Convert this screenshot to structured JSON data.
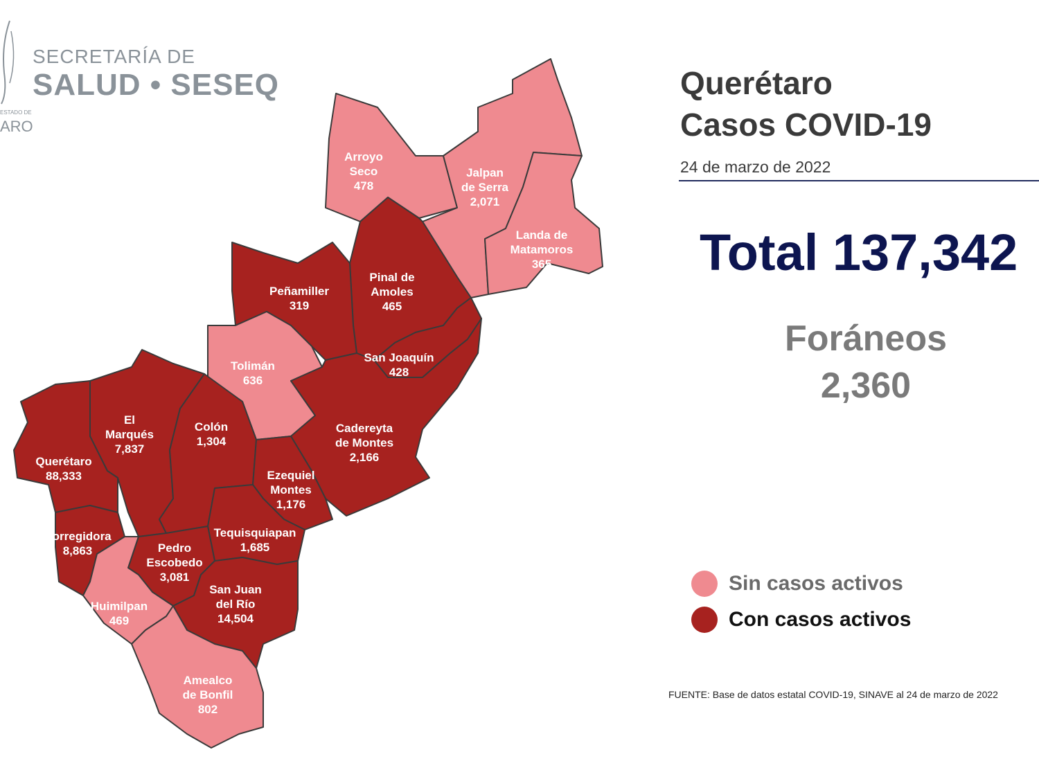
{
  "logo": {
    "line1": "SECRETARÍA DE",
    "line2": "SALUD • SESEQ",
    "small": "ESTADO DE",
    "aro": "ARO"
  },
  "header": {
    "title_line1": "Querétaro",
    "title_line2": "Casos COVID-19",
    "date": "24 de marzo de 2022"
  },
  "totals": {
    "total_label": "Total 137,342",
    "foraneos_label": "Foráneos",
    "foraneos_value": "2,360"
  },
  "legend": {
    "inactive_label": "Sin casos activos",
    "active_label": "Con casos activos",
    "inactive_color": "#ef8a90",
    "active_color": "#a7221f"
  },
  "source": "FUENTE: Base de datos estatal COVID-19, SINAVE al 24 de marzo de 2022",
  "municipalities": [
    {
      "id": "arroyo-seco",
      "name_lines": [
        "Arroyo",
        "Seco"
      ],
      "cases": "478",
      "active": false
    },
    {
      "id": "jalpan-de-serra",
      "name_lines": [
        "Jalpan",
        "de Serra"
      ],
      "cases": "2,071",
      "active": false
    },
    {
      "id": "landa-de-matamoros",
      "name_lines": [
        "Landa de",
        "Matamoros"
      ],
      "cases": "365",
      "active": false
    },
    {
      "id": "pinal-de-amoles",
      "name_lines": [
        "Pinal de",
        "Amoles"
      ],
      "cases": "465",
      "active": true
    },
    {
      "id": "penamiller",
      "name_lines": [
        "Peñamiller"
      ],
      "cases": "319",
      "active": true
    },
    {
      "id": "san-joaquin",
      "name_lines": [
        "San Joaquín"
      ],
      "cases": "428",
      "active": true
    },
    {
      "id": "toliman",
      "name_lines": [
        "Tolimán"
      ],
      "cases": "636",
      "active": false
    },
    {
      "id": "cadereyta-de-montes",
      "name_lines": [
        "Cadereyta",
        "de Montes"
      ],
      "cases": "2,166",
      "active": true
    },
    {
      "id": "el-marques",
      "name_lines": [
        "El",
        "Marqués"
      ],
      "cases": "7,837",
      "active": true
    },
    {
      "id": "colon",
      "name_lines": [
        "Colón"
      ],
      "cases": "1,304",
      "active": true
    },
    {
      "id": "queretaro",
      "name_lines": [
        "Querétaro"
      ],
      "cases": "88,333",
      "active": true
    },
    {
      "id": "ezequiel-montes",
      "name_lines": [
        "Ezequiel",
        "Montes"
      ],
      "cases": "1,176",
      "active": true
    },
    {
      "id": "corregidora",
      "name_lines": [
        "Corregidora"
      ],
      "cases": "8,863",
      "active": true
    },
    {
      "id": "tequisquiapan",
      "name_lines": [
        "Tequisquiapan"
      ],
      "cases": "1,685",
      "active": true
    },
    {
      "id": "pedro-escobedo",
      "name_lines": [
        "Pedro",
        "Escobedo"
      ],
      "cases": "3,081",
      "active": true
    },
    {
      "id": "san-juan-del-rio",
      "name_lines": [
        "San Juan",
        "del Río"
      ],
      "cases": "14,504",
      "active": true
    },
    {
      "id": "huimilpan",
      "name_lines": [
        "Huimilpan"
      ],
      "cases": "469",
      "active": false
    },
    {
      "id": "amealco-de-bonfil",
      "name_lines": [
        "Amealco",
        "de Bonfil"
      ],
      "cases": "802",
      "active": false
    }
  ]
}
